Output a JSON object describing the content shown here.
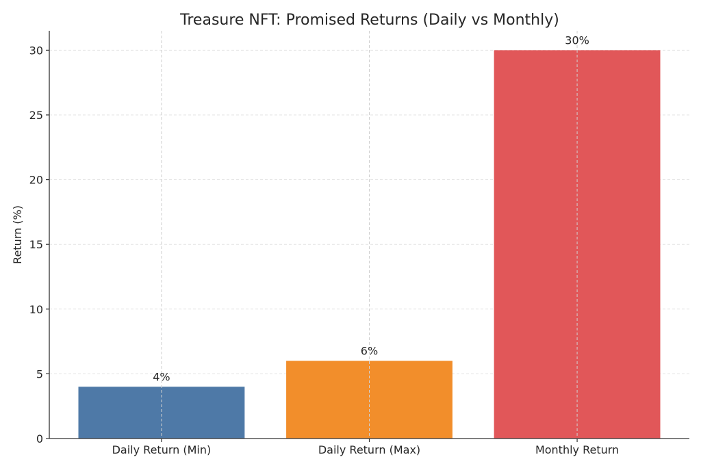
{
  "chart_data": {
    "type": "bar",
    "title": "Treasure NFT: Promised Returns (Daily vs Monthly)",
    "xlabel": "",
    "ylabel": "Return (%)",
    "categories": [
      "Daily Return (Min)",
      "Daily Return (Max)",
      "Monthly Return"
    ],
    "values": [
      4,
      6,
      30
    ],
    "data_labels": [
      "4%",
      "6%",
      "30%"
    ],
    "colors": [
      "#4e79a7",
      "#f28e2b",
      "#e15759"
    ],
    "ylim": [
      0,
      31.5
    ],
    "yticks": [
      0,
      5,
      10,
      15,
      20,
      25,
      30
    ],
    "grid": true
  }
}
